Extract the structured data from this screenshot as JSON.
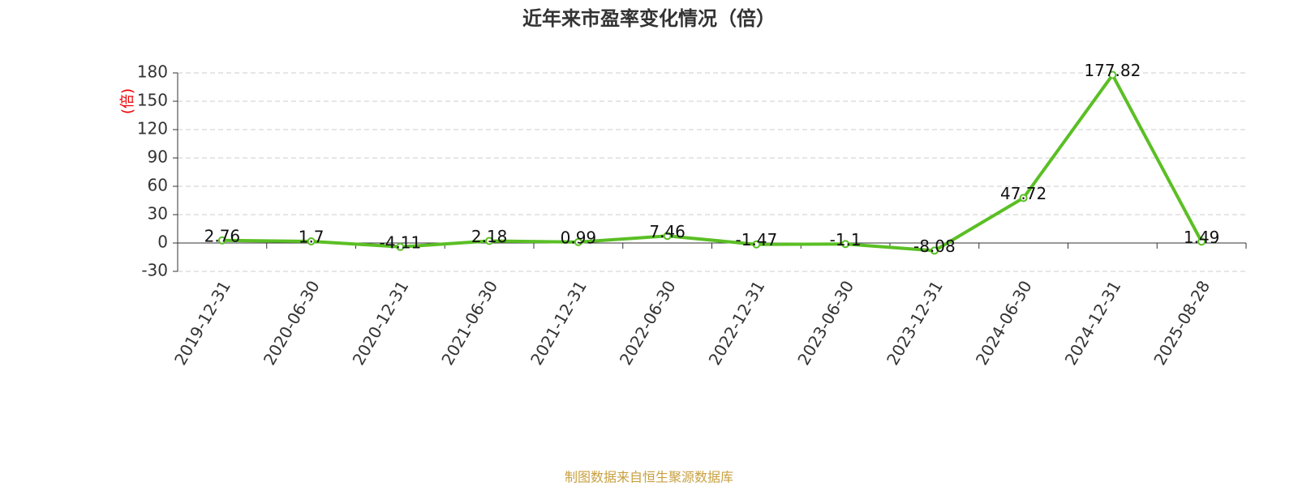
{
  "chart_data": {
    "type": "line",
    "title": "近年来市盈率变化情况（倍）",
    "y_label": "(倍)",
    "categories": [
      "2019-12-31",
      "2020-06-30",
      "2020-12-31",
      "2021-06-30",
      "2021-12-31",
      "2022-06-30",
      "2022-12-31",
      "2023-06-30",
      "2023-12-31",
      "2024-06-30",
      "2024-12-31",
      "2025-08-28"
    ],
    "series": [
      {
        "name": "市盈率",
        "color": "#5abf24",
        "values": [
          2.76,
          1.7,
          -4.11,
          2.18,
          0.99,
          7.46,
          -1.47,
          -1.1,
          -8.08,
          47.72,
          177.82,
          1.49
        ]
      }
    ],
    "ylim": [
      -30,
      180
    ],
    "yticks": [
      -30,
      0,
      30,
      60,
      90,
      120,
      150,
      180
    ],
    "grid": true,
    "source": "制图数据来自恒生聚源数据库"
  }
}
